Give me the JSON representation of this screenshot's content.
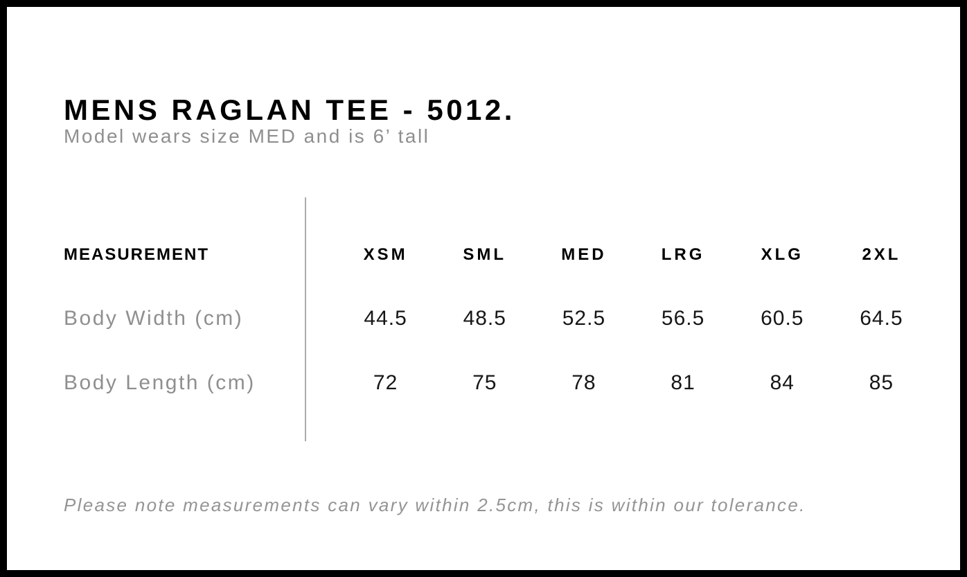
{
  "page": {
    "title": "MENS RAGLAN TEE - 5012.",
    "subtitle": "Model wears size MED and is 6’ tall",
    "footnote": "Please note measurements can vary within 2.5cm, this is within our tolerance."
  },
  "size_chart": {
    "measurement_header": "MEASUREMENT",
    "sizes": [
      "XSM",
      "SML",
      "MED",
      "LRG",
      "XLG",
      "2XL"
    ],
    "rows": [
      {
        "label": "Body Width (cm)",
        "values": [
          "44.5",
          "48.5",
          "52.5",
          "56.5",
          "60.5",
          "64.5"
        ]
      },
      {
        "label": "Body Length (cm)",
        "values": [
          "72",
          "75",
          "78",
          "81",
          "84",
          "85"
        ]
      }
    ]
  },
  "chart_data": {
    "type": "table",
    "title": "MENS RAGLAN TEE - 5012.",
    "columns": [
      "MEASUREMENT",
      "XSM",
      "SML",
      "MED",
      "LRG",
      "XLG",
      "2XL"
    ],
    "rows": [
      [
        "Body Width (cm)",
        44.5,
        48.5,
        52.5,
        56.5,
        60.5,
        64.5
      ],
      [
        "Body Length (cm)",
        72,
        75,
        78,
        81,
        84,
        85
      ]
    ]
  },
  "colors": {
    "border": "#000000",
    "title_text": "#000000",
    "muted_text": "#8f8f8f",
    "value_text": "#161616",
    "divider": "#aaaaaa"
  }
}
